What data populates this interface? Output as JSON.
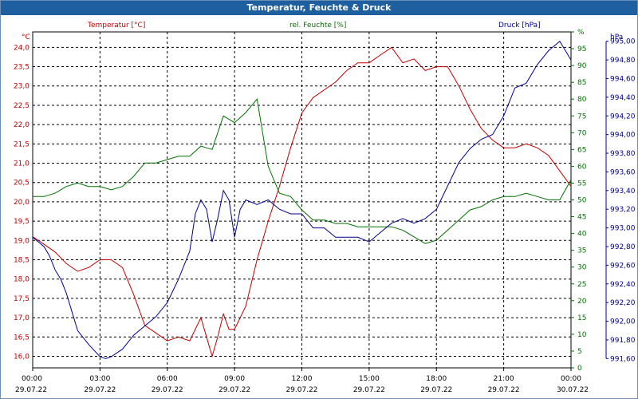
{
  "chart_data": {
    "type": "line",
    "title": "Temperatur, Feuchte & Druck",
    "colors": {
      "temperature": "#c00000",
      "humidity": "#007000",
      "pressure": "#000090",
      "title_bar": "#1e5fa0"
    },
    "x_ticks": [
      {
        "time": "00:00",
        "date": "29.07.22"
      },
      {
        "time": "03:00",
        "date": "29.07.22"
      },
      {
        "time": "06:00",
        "date": "29.07.22"
      },
      {
        "time": "09:00",
        "date": "29.07.22"
      },
      {
        "time": "12:00",
        "date": "29.07.22"
      },
      {
        "time": "15:00",
        "date": "29.07.22"
      },
      {
        "time": "18:00",
        "date": "29.07.22"
      },
      {
        "time": "21:00",
        "date": "29.07.22"
      },
      {
        "time": "00:00",
        "date": "30.07.22"
      }
    ],
    "x_range_hours": [
      0,
      24
    ],
    "axes": {
      "temperature": {
        "label": "Temperatur [°C]",
        "unit": "°C",
        "range": [
          15.7,
          24.4
        ],
        "ticks": [
          "16,0",
          "16,5",
          "17,0",
          "17,5",
          "18,0",
          "18,5",
          "19,0",
          "19,5",
          "20,0",
          "20,5",
          "21,0",
          "21,5",
          "22,0",
          "22,5",
          "23,0",
          "23,5",
          "24,0"
        ]
      },
      "humidity": {
        "label": "rel. Feuchte [%]",
        "unit": "%",
        "range": [
          0,
          100
        ],
        "ticks": [
          "0",
          "5",
          "10",
          "15",
          "20",
          "25",
          "30",
          "35",
          "40",
          "45",
          "50",
          "55",
          "60",
          "65",
          "70",
          "75",
          "80",
          "85",
          "90",
          "95",
          "%"
        ]
      },
      "pressure": {
        "label": "Druck [hPa]",
        "unit": "hPa",
        "range": [
          991.5,
          995.1
        ],
        "ticks": [
          "991,60",
          "991,80",
          "992,00",
          "992,20",
          "992,40",
          "992,60",
          "992,80",
          "993,00",
          "993,20",
          "993,40",
          "993,60",
          "993,80",
          "994,00",
          "994,20",
          "994,40",
          "994,60",
          "994,80",
          "995,00"
        ]
      }
    },
    "series": [
      {
        "name": "Temperatur",
        "axis": "temperature",
        "color": "#c00000",
        "x": [
          0,
          0.5,
          1,
          1.5,
          2,
          2.5,
          3,
          3.5,
          4,
          4.5,
          5,
          5.5,
          6,
          6.5,
          7,
          7.25,
          7.5,
          7.75,
          8,
          8.25,
          8.5,
          8.75,
          9,
          9.25,
          9.5,
          10,
          10.5,
          11,
          11.5,
          12,
          12.5,
          13,
          13.5,
          14,
          14.5,
          15,
          15.5,
          16,
          16.5,
          17,
          17.5,
          18,
          18.5,
          19,
          19.5,
          20,
          20.5,
          21,
          21.5,
          22,
          22.5,
          23,
          23.5,
          24
        ],
        "values": [
          19.1,
          18.9,
          18.7,
          18.4,
          18.2,
          18.3,
          18.5,
          18.5,
          18.3,
          17.6,
          16.8,
          16.6,
          16.4,
          16.5,
          16.4,
          16.7,
          17.0,
          16.5,
          16.0,
          16.5,
          17.1,
          16.7,
          16.7,
          17.0,
          17.3,
          18.5,
          19.5,
          20.4,
          21.4,
          22.3,
          22.7,
          22.9,
          23.1,
          23.4,
          23.6,
          23.6,
          23.8,
          24.0,
          23.6,
          23.7,
          23.4,
          23.5,
          23.5,
          23.0,
          22.4,
          21.9,
          21.6,
          21.4,
          21.4,
          21.5,
          21.4,
          21.2,
          20.8,
          20.4
        ]
      },
      {
        "name": "rel. Feuchte",
        "axis": "humidity",
        "color": "#007000",
        "x": [
          0,
          0.5,
          1,
          1.5,
          2,
          2.5,
          3,
          3.5,
          4,
          4.5,
          5,
          5.5,
          6,
          6.5,
          7,
          7.5,
          8,
          8.5,
          9,
          9.5,
          10,
          10.5,
          11,
          11.5,
          12,
          12.5,
          13,
          13.5,
          14,
          14.5,
          15,
          15.5,
          16,
          16.5,
          17,
          17.5,
          18,
          18.5,
          19,
          19.5,
          20,
          20.5,
          21,
          21.5,
          22,
          22.5,
          23,
          23.5,
          24
        ],
        "values": [
          51,
          51,
          52,
          54,
          55,
          54,
          54,
          53,
          54,
          57,
          61,
          61,
          62,
          63,
          63,
          66,
          65,
          75,
          73,
          76,
          80,
          60,
          52,
          51,
          47,
          44,
          44,
          43,
          43,
          42,
          42,
          42,
          42,
          41,
          39,
          37,
          38,
          41,
          44,
          47,
          48,
          50,
          51,
          51,
          52,
          51,
          50,
          50,
          56
        ]
      },
      {
        "name": "Druck",
        "axis": "pressure",
        "color": "#000090",
        "x": [
          0,
          0.25,
          0.5,
          0.75,
          1,
          1.25,
          1.5,
          2,
          2.5,
          3,
          3.25,
          3.5,
          4,
          4.5,
          5,
          5.5,
          6,
          6.5,
          7,
          7.25,
          7.5,
          7.75,
          8,
          8.25,
          8.5,
          8.75,
          9,
          9.25,
          9.5,
          10,
          10.5,
          11,
          11.5,
          12,
          12.5,
          13,
          13.5,
          14,
          14.5,
          15,
          15.5,
          16,
          16.5,
          17,
          17.5,
          18,
          18.5,
          19,
          19.5,
          20,
          20.5,
          21,
          21.5,
          22,
          22.5,
          23,
          23.5,
          24
        ],
        "values": [
          992.9,
          992.85,
          992.8,
          992.7,
          992.55,
          992.45,
          992.3,
          991.9,
          991.75,
          991.62,
          991.6,
          991.62,
          991.7,
          991.85,
          991.95,
          992.05,
          992.2,
          992.45,
          992.75,
          993.15,
          993.3,
          993.2,
          992.85,
          993.1,
          993.4,
          993.3,
          992.9,
          993.2,
          993.3,
          993.25,
          993.3,
          993.2,
          993.15,
          993.15,
          993.0,
          993.0,
          992.9,
          992.9,
          992.9,
          992.85,
          992.95,
          993.05,
          993.1,
          993.05,
          993.1,
          993.2,
          993.45,
          993.7,
          993.85,
          993.95,
          994.0,
          994.2,
          994.5,
          994.55,
          994.75,
          994.9,
          995.0,
          994.8
        ]
      }
    ]
  }
}
